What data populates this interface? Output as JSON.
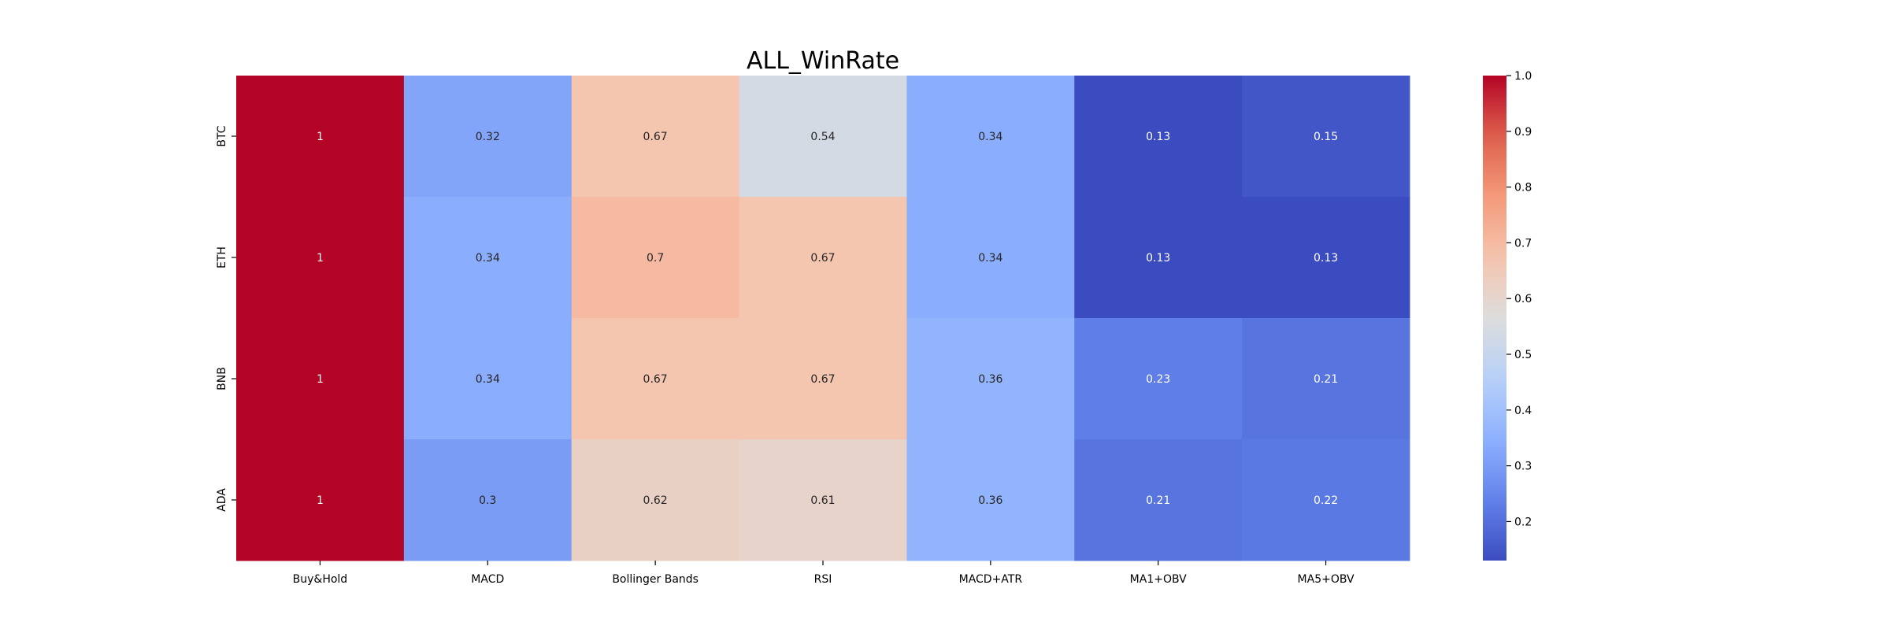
{
  "chart_data": {
    "type": "heatmap",
    "title": "ALL_WinRate",
    "xlabel": "",
    "ylabel": "",
    "x_categories": [
      "Buy&Hold",
      "MACD",
      "Bollinger Bands",
      "RSI",
      "MACD+ATR",
      "MA1+OBV",
      "MA5+OBV"
    ],
    "y_categories": [
      "BTC",
      "ETH",
      "BNB",
      "ADA"
    ],
    "values": [
      [
        1.0,
        0.32,
        0.67,
        0.54,
        0.34,
        0.13,
        0.15
      ],
      [
        1.0,
        0.34,
        0.7,
        0.67,
        0.34,
        0.13,
        0.13
      ],
      [
        1.0,
        0.34,
        0.67,
        0.67,
        0.36,
        0.23,
        0.21
      ],
      [
        1.0,
        0.3,
        0.62,
        0.61,
        0.36,
        0.21,
        0.22
      ]
    ],
    "cell_labels": [
      [
        "1",
        "0.32",
        "0.67",
        "0.54",
        "0.34",
        "0.13",
        "0.15"
      ],
      [
        "1",
        "0.34",
        "0.7",
        "0.67",
        "0.34",
        "0.13",
        "0.13"
      ],
      [
        "1",
        "0.34",
        "0.67",
        "0.67",
        "0.36",
        "0.23",
        "0.21"
      ],
      [
        "1",
        "0.3",
        "0.62",
        "0.61",
        "0.36",
        "0.21",
        "0.22"
      ]
    ],
    "colormap": "coolwarm",
    "vmin": 0.13,
    "vmax": 1.0,
    "colorbar_ticks": [
      "0.2",
      "0.3",
      "0.4",
      "0.5",
      "0.6",
      "0.7",
      "0.8",
      "0.9",
      "1.0"
    ],
    "colorbar_tick_values": [
      0.2,
      0.3,
      0.4,
      0.5,
      0.6,
      0.7,
      0.8,
      0.9,
      1.0
    ],
    "grid": false,
    "legend": "colorbar-right"
  }
}
